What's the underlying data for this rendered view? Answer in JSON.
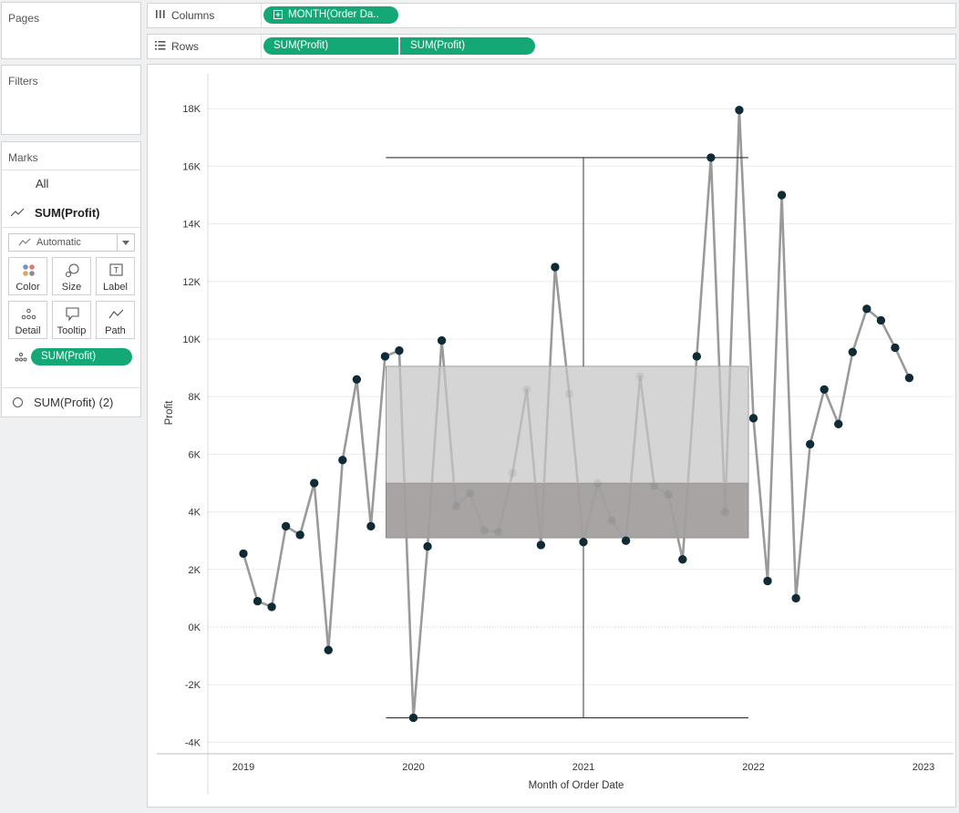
{
  "panels": {
    "pages_title": "Pages",
    "filters_title": "Filters",
    "marks_title": "Marks"
  },
  "marks": {
    "all_label": "All",
    "active_label": "SUM(Profit)",
    "mark_type": "Automatic",
    "buttons": [
      {
        "label": "Color",
        "icon": "color-dots-icon"
      },
      {
        "label": "Size",
        "icon": "size-icon"
      },
      {
        "label": "Label",
        "icon": "label-icon"
      },
      {
        "label": "Detail",
        "icon": "detail-dots-icon"
      },
      {
        "label": "Tooltip",
        "icon": "tooltip-icon"
      },
      {
        "label": "Path",
        "icon": "path-icon"
      }
    ],
    "detail_pill": "SUM(Profit)",
    "second_label": "SUM(Profit) (2)"
  },
  "shelves": {
    "columns_label": "Columns",
    "columns_pill": "MONTH(Order Da..",
    "rows_label": "Rows",
    "rows_pill_1": "SUM(Profit)",
    "rows_pill_2": "SUM(Profit)"
  },
  "colors": {
    "pill": "#14a876",
    "line": "#9a9a9a",
    "dot": "#0f2c36",
    "box_upper": "#d6d6d6",
    "box_lower": "#a8a4a4"
  },
  "chart_data": {
    "type": "line",
    "xlabel": "Month of Order Date",
    "ylabel": "Profit",
    "xlim": [
      "2019-01",
      "2023-01"
    ],
    "ylim": [
      -4000,
      19000
    ],
    "y_ticks": [
      -4000,
      -2000,
      0,
      2000,
      4000,
      6000,
      8000,
      10000,
      12000,
      14000,
      16000,
      18000
    ],
    "y_tick_labels": [
      "-4K",
      "-2K",
      "0K",
      "2K",
      "4K",
      "6K",
      "8K",
      "10K",
      "12K",
      "14K",
      "16K",
      "18K"
    ],
    "x_ticks": [
      "2019",
      "2020",
      "2021",
      "2022",
      "2023"
    ],
    "series": [
      {
        "x": [
          "2019-01",
          "2019-02",
          "2019-03",
          "2019-04",
          "2019-05",
          "2019-06",
          "2019-07",
          "2019-08",
          "2019-09",
          "2019-10",
          "2019-11",
          "2019-12",
          "2020-01",
          "2020-02",
          "2020-03",
          "2020-04",
          "2020-05",
          "2020-06",
          "2020-07",
          "2020-08",
          "2020-09",
          "2020-10",
          "2020-11",
          "2020-12",
          "2021-01",
          "2021-02",
          "2021-03",
          "2021-04",
          "2021-05",
          "2021-06",
          "2021-07",
          "2021-08",
          "2021-09",
          "2021-10",
          "2021-11",
          "2021-12",
          "2022-01",
          "2022-02",
          "2022-03",
          "2022-04",
          "2022-05",
          "2022-06",
          "2022-07",
          "2022-08",
          "2022-09",
          "2022-10",
          "2022-11",
          "2022-12"
        ],
        "values": [
          2550,
          900,
          700,
          3500,
          3200,
          5000,
          -800,
          5800,
          8600,
          3500,
          9400,
          9600,
          -3150,
          2800,
          9950,
          4200,
          4650,
          3350,
          3300,
          5350,
          8250,
          2850,
          12500,
          8100,
          2950,
          5000,
          3700,
          3000,
          8700,
          4900,
          4600,
          2350,
          9400,
          16300,
          4000,
          17950,
          7250,
          1600,
          15000,
          1000,
          6350,
          8250,
          7050,
          9550,
          11050,
          10650,
          9700,
          8650
        ]
      }
    ],
    "box_plot": {
      "x_range": [
        "2019-11",
        "2021-12"
      ],
      "lower_whisker": -3150,
      "q1": 3100,
      "median": 5000,
      "q3": 9050,
      "upper_whisker": 16300,
      "median_month": "2021-01"
    },
    "grid": "horizontal",
    "zero_line": "dotted"
  }
}
